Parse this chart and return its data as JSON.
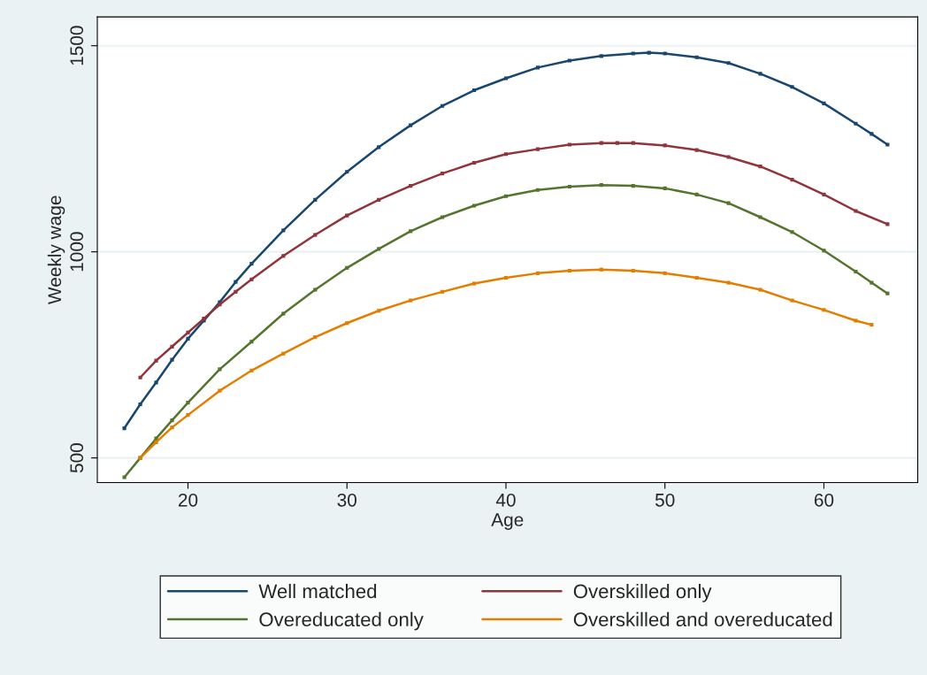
{
  "chart_data": {
    "type": "line",
    "xlabel": "Age",
    "ylabel": "Weekly wage",
    "xlim": [
      14.3,
      65.9
    ],
    "ylim": [
      440,
      1570
    ],
    "xticks": [
      20,
      30,
      40,
      50,
      60
    ],
    "yticks": [
      500,
      1000,
      1500
    ],
    "grid": "y",
    "legend": "bottom",
    "marker": "square",
    "line_style": "solid",
    "series": [
      {
        "name": "Well matched",
        "color": "#1a476f",
        "x": [
          16,
          17,
          18,
          19,
          20,
          21,
          22,
          23,
          24,
          26,
          28,
          30,
          32,
          34,
          36,
          38,
          40,
          42,
          44,
          46,
          48,
          49,
          50,
          52,
          54,
          56,
          58,
          60,
          62,
          63,
          64
        ],
        "values": [
          572,
          630,
          683,
          738,
          789,
          833,
          878,
          927,
          971,
          1052,
          1126,
          1194,
          1254,
          1307,
          1354,
          1392,
          1421,
          1447,
          1464,
          1475,
          1481,
          1483,
          1481,
          1472,
          1458,
          1432,
          1400,
          1360,
          1311,
          1286,
          1260
        ]
      },
      {
        "name": "Overskilled only",
        "color": "#90353b",
        "x": [
          17,
          18,
          19,
          20,
          21,
          22,
          23,
          24,
          26,
          28,
          30,
          32,
          34,
          36,
          38,
          40,
          42,
          44,
          46,
          47,
          48,
          50,
          52,
          54,
          56,
          58,
          60,
          62,
          64
        ],
        "values": [
          695,
          736,
          770,
          804,
          838,
          872,
          903,
          933,
          990,
          1041,
          1088,
          1126,
          1160,
          1190,
          1216,
          1237,
          1249,
          1260,
          1264,
          1264,
          1264,
          1258,
          1247,
          1230,
          1207,
          1175,
          1139,
          1099,
          1067
        ]
      },
      {
        "name": "Overeducated only",
        "color": "#55752f",
        "x": [
          16,
          17,
          18,
          19,
          20,
          22,
          24,
          26,
          28,
          30,
          32,
          34,
          36,
          38,
          40,
          42,
          44,
          46,
          48,
          50,
          52,
          54,
          56,
          58,
          60,
          62,
          63,
          64
        ],
        "values": [
          453,
          500,
          547,
          591,
          634,
          715,
          782,
          850,
          908,
          961,
          1007,
          1050,
          1084,
          1112,
          1135,
          1150,
          1158,
          1162,
          1160,
          1154,
          1139,
          1118,
          1084,
          1048,
          1003,
          952,
          925,
          899
        ]
      },
      {
        "name": "Overskilled and overeducated",
        "color": "#e37e00",
        "x": [
          17,
          18,
          19,
          20,
          22,
          24,
          26,
          28,
          30,
          32,
          34,
          36,
          38,
          40,
          42,
          44,
          46,
          48,
          50,
          52,
          54,
          56,
          58,
          60,
          62,
          63
        ],
        "values": [
          500,
          538,
          574,
          604,
          663,
          712,
          753,
          793,
          827,
          857,
          882,
          903,
          923,
          937,
          948,
          954,
          957,
          954,
          948,
          937,
          925,
          908,
          882,
          859,
          833,
          823
        ]
      }
    ]
  }
}
